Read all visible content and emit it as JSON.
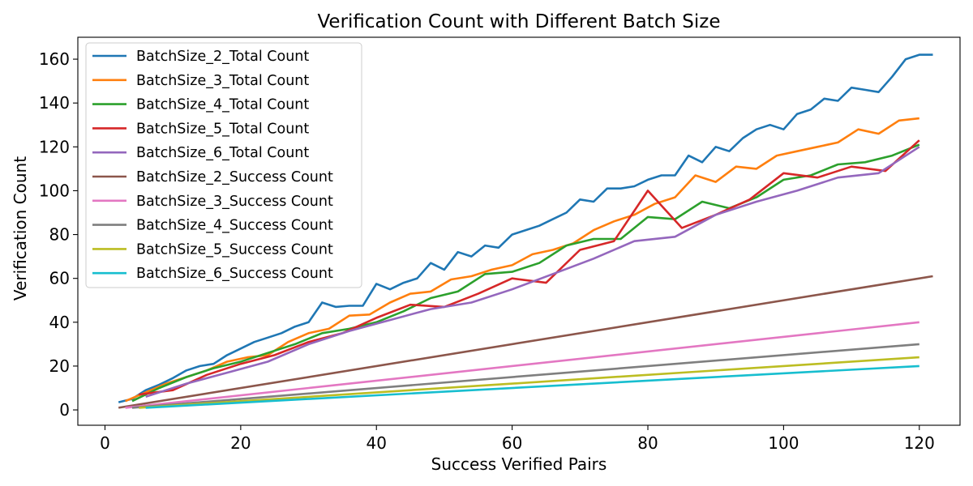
{
  "chart_data": {
    "type": "line",
    "title": "Verification Count with Different Batch Size",
    "xlabel": "Success Verified Pairs",
    "ylabel": "Verification Count",
    "xlim": [
      -4,
      126
    ],
    "ylim": [
      -7,
      170
    ],
    "xticks": [
      0,
      20,
      40,
      60,
      80,
      100,
      120
    ],
    "yticks": [
      0,
      20,
      40,
      60,
      80,
      100,
      120,
      140,
      160
    ],
    "grid": false,
    "legend_position": "top-left",
    "series": [
      {
        "name": "BatchSize_2_Total Count",
        "color": "#1f77b4",
        "x": [
          2,
          4,
          6,
          8,
          10,
          12,
          14,
          16,
          18,
          20,
          22,
          24,
          26,
          28,
          30,
          32,
          34,
          36,
          38,
          40,
          42,
          44,
          46,
          48,
          50,
          52,
          54,
          56,
          58,
          60,
          62,
          64,
          66,
          68,
          70,
          72,
          74,
          76,
          78,
          80,
          82,
          84,
          86,
          88,
          90,
          92,
          94,
          96,
          98,
          100,
          102,
          104,
          106,
          108,
          110,
          112,
          114,
          116,
          118,
          120,
          122
        ],
        "y": [
          3.5,
          5,
          9,
          11.5,
          14.5,
          18,
          20,
          21,
          25,
          28,
          31,
          33,
          35,
          38,
          40,
          49,
          47,
          47.5,
          47.5,
          57.5,
          55,
          58,
          60,
          67,
          64,
          72,
          70,
          75,
          74,
          80,
          82,
          84,
          87,
          90,
          96,
          95,
          101,
          101,
          102,
          105,
          107,
          107,
          116,
          113,
          120,
          118,
          124,
          128,
          130,
          128,
          135,
          137,
          142,
          141,
          147,
          146,
          145,
          152,
          160,
          162,
          162
        ]
      },
      {
        "name": "BatchSize_3_Total Count",
        "color": "#ff7f0e",
        "x": [
          3,
          6,
          9,
          12,
          15,
          18,
          21,
          24,
          27,
          30,
          33,
          36,
          39,
          42,
          45,
          48,
          51,
          54,
          57,
          60,
          63,
          66,
          69,
          72,
          75,
          78,
          81,
          84,
          87,
          90,
          93,
          96,
          99,
          102,
          105,
          108,
          111,
          114,
          117,
          120
        ],
        "y": [
          4,
          8,
          12,
          15,
          18,
          22,
          24,
          25,
          31,
          35,
          37,
          43,
          43.5,
          49,
          53,
          54,
          59.5,
          61,
          64,
          66,
          71,
          73,
          76,
          82,
          86,
          89,
          94,
          97,
          107,
          104,
          111,
          110,
          116,
          118,
          120,
          122,
          128,
          126,
          132,
          133
        ]
      },
      {
        "name": "BatchSize_4_Total Count",
        "color": "#2ca02c",
        "x": [
          4,
          8,
          12,
          16,
          20,
          24,
          28,
          32,
          36,
          40,
          44,
          48,
          52,
          56,
          60,
          64,
          68,
          72,
          76,
          80,
          84,
          88,
          92,
          96,
          100,
          104,
          108,
          112,
          116,
          120
        ],
        "y": [
          4,
          10,
          15,
          19,
          22,
          26,
          30,
          35,
          37,
          40,
          45,
          51,
          54,
          62,
          63,
          67,
          75,
          78,
          78,
          88,
          87,
          95,
          92,
          97,
          105,
          107,
          112,
          113,
          116,
          121
        ]
      },
      {
        "name": "BatchSize_5_Total Count",
        "color": "#d62728",
        "x": [
          5,
          10,
          15,
          20,
          25,
          30,
          35,
          40,
          45,
          50,
          55,
          60,
          65,
          70,
          75,
          80,
          85,
          90,
          95,
          100,
          105,
          110,
          115,
          120
        ],
        "y": [
          7,
          9,
          16,
          21,
          25,
          31,
          35,
          42,
          48,
          47,
          53,
          60,
          58,
          73,
          77,
          100,
          83,
          89,
          96,
          108,
          106,
          111,
          109,
          123
        ]
      },
      {
        "name": "BatchSize_6_Total Count",
        "color": "#9467bd",
        "x": [
          6,
          12,
          18,
          24,
          30,
          36,
          42,
          48,
          54,
          60,
          66,
          72,
          78,
          84,
          90,
          96,
          102,
          108,
          114,
          120
        ],
        "y": [
          6,
          12,
          17,
          22,
          30,
          36,
          41,
          46,
          49,
          55,
          62,
          69,
          77,
          79,
          89,
          95,
          100,
          106,
          108,
          120
        ]
      },
      {
        "name": "BatchSize_2_Success Count",
        "color": "#8c564b",
        "x": [
          2,
          122
        ],
        "y": [
          1,
          61
        ]
      },
      {
        "name": "BatchSize_3_Success Count",
        "color": "#e377c2",
        "x": [
          3,
          120
        ],
        "y": [
          1,
          40
        ]
      },
      {
        "name": "BatchSize_4_Success Count",
        "color": "#7f7f7f",
        "x": [
          4,
          120
        ],
        "y": [
          1,
          30
        ]
      },
      {
        "name": "BatchSize_5_Success Count",
        "color": "#bcbd22",
        "x": [
          5,
          120
        ],
        "y": [
          1,
          24
        ]
      },
      {
        "name": "BatchSize_6_Success Count",
        "color": "#17becf",
        "x": [
          6,
          120
        ],
        "y": [
          1,
          20
        ]
      }
    ]
  }
}
